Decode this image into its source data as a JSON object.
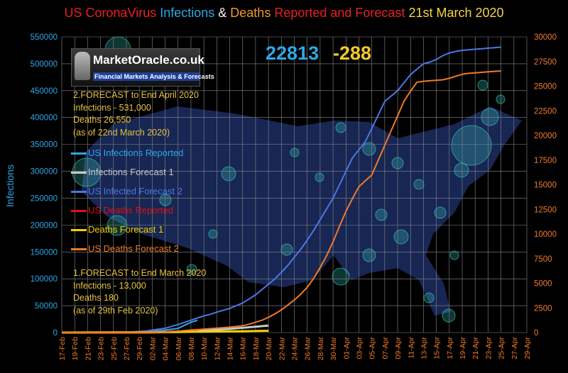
{
  "chart_data": {
    "type": "line",
    "title_parts": [
      {
        "text": "US CoronaVirus ",
        "color": "#e82020"
      },
      {
        "text": "Infections ",
        "color": "#2ca8e6"
      },
      {
        "text": "& ",
        "color": "#f0f0f0"
      },
      {
        "text": "Deaths ",
        "color": "#f29a2e"
      },
      {
        "text": "Reported and Forecast",
        "color": "#e82020"
      },
      {
        "text": "  21st  March 2020",
        "color": "#f2d44a"
      }
    ],
    "ylabel_left": "Infections",
    "ylim_left": [
      0,
      550000
    ],
    "ylim_right": [
      0,
      30000
    ],
    "left_ticks": [
      0,
      50000,
      100000,
      150000,
      200000,
      250000,
      300000,
      350000,
      400000,
      450000,
      500000,
      550000
    ],
    "right_ticks": [
      0,
      2500,
      5000,
      7500,
      10000,
      12500,
      15000,
      17500,
      20000,
      22500,
      25000,
      27500,
      30000
    ],
    "x_labels": [
      "17-Feb",
      "19-Feb",
      "21-Feb",
      "23-Feb",
      "25-Feb",
      "27-Feb",
      "29-Feb",
      "02-Mar",
      "04-Mar",
      "06-Mar",
      "08-Mar",
      "10-Mar",
      "12-Mar",
      "14-Mar",
      "16-Mar",
      "18-Mar",
      "20-Mar",
      "22-Mar",
      "24-Mar",
      "26-Mar",
      "28-Mar",
      "30-Mar",
      "01-Apr",
      "03-Apr",
      "05-Apr",
      "07-Apr",
      "09-Apr",
      "11-Apr",
      "13-Apr",
      "15-Apr",
      "17-Apr",
      "19-Apr",
      "21-Apr",
      "23-Apr",
      "25-Apr",
      "27-Apr",
      "29-Apr"
    ],
    "headline": {
      "infections": "22813",
      "deaths": "-288"
    },
    "forecast2_text": [
      "2.FORECAST to End April 2020",
      "Infections - 531,000",
      "Deaths 26,550",
      "(as of  22nd March  2020)"
    ],
    "forecast1_text": [
      "1.FORECAST to End March 2020",
      "Infections - 13,000",
      "Deaths 180",
      "(as of  29th Feb  2020)"
    ],
    "series": [
      {
        "name": "US Infections Reported",
        "axis": "left",
        "color": "#2ca8e6",
        "width": 2,
        "points": [
          [
            0,
            15
          ],
          [
            6,
            60
          ],
          [
            12,
            900
          ],
          [
            14,
            2500
          ],
          [
            16,
            4600
          ],
          [
            18,
            7800
          ],
          [
            19,
            13600
          ],
          [
            20,
            19100
          ],
          [
            21,
            22813
          ]
        ]
      },
      {
        "name": "Infections Forecast 1",
        "axis": "left",
        "color": "#c8c8c8",
        "width": 3,
        "points": [
          [
            0,
            0
          ],
          [
            6,
            70
          ],
          [
            12,
            450
          ],
          [
            14,
            700
          ],
          [
            16,
            1200
          ],
          [
            17,
            1600
          ],
          [
            18,
            2000
          ],
          [
            19,
            2500
          ],
          [
            20,
            3000
          ],
          [
            22,
            4300
          ],
          [
            24,
            5600
          ],
          [
            26,
            7000
          ],
          [
            28,
            8900
          ],
          [
            30,
            11000
          ],
          [
            31,
            12000
          ],
          [
            32,
            13000
          ]
        ]
      },
      {
        "name": "US Infected Forecast 2",
        "axis": "left",
        "color": "#4a78e8",
        "width": 2,
        "points": [
          [
            0,
            0
          ],
          [
            5,
            100
          ],
          [
            10,
            600
          ],
          [
            13,
            3000
          ],
          [
            16,
            8000
          ],
          [
            18,
            15000
          ],
          [
            19,
            19000
          ],
          [
            20,
            23000
          ],
          [
            21,
            27000
          ],
          [
            22,
            31000
          ],
          [
            23,
            34000
          ],
          [
            24,
            38000
          ],
          [
            26,
            45000
          ],
          [
            28,
            55000
          ],
          [
            30,
            70000
          ],
          [
            31,
            80000
          ],
          [
            32,
            90000
          ],
          [
            33,
            100000
          ],
          [
            34,
            112000
          ],
          [
            35,
            125000
          ],
          [
            36,
            140000
          ],
          [
            37,
            155000
          ],
          [
            38,
            172000
          ],
          [
            39,
            190000
          ],
          [
            40,
            210000
          ],
          [
            41,
            230000
          ],
          [
            42,
            250000
          ],
          [
            43,
            275000
          ],
          [
            44,
            300000
          ],
          [
            45,
            325000
          ],
          [
            46,
            340000
          ],
          [
            47,
            355000
          ],
          [
            48,
            380000
          ],
          [
            49,
            405000
          ],
          [
            50,
            430000
          ],
          [
            51,
            440000
          ],
          [
            52,
            450000
          ],
          [
            53,
            465000
          ],
          [
            54,
            480000
          ],
          [
            55,
            490000
          ],
          [
            56,
            500000
          ],
          [
            57,
            503000
          ],
          [
            58,
            508000
          ],
          [
            59,
            515000
          ],
          [
            60,
            520000
          ],
          [
            61,
            523000
          ],
          [
            62,
            525000
          ],
          [
            63,
            526000
          ],
          [
            64,
            527000
          ],
          [
            65,
            528000
          ],
          [
            66,
            529000
          ],
          [
            67,
            530000
          ],
          [
            68,
            531000
          ]
        ]
      },
      {
        "name": "US Deaths Reported",
        "axis": "right",
        "color": "#e01010",
        "width": 3,
        "points": [
          [
            0,
            0
          ],
          [
            14,
            30
          ],
          [
            18,
            100
          ],
          [
            20,
            220
          ],
          [
            21,
            288
          ]
        ]
      },
      {
        "name": "Deaths Forecast 1",
        "axis": "right",
        "color": "#f2d000",
        "width": 3,
        "points": [
          [
            0,
            0
          ],
          [
            12,
            15
          ],
          [
            14,
            25
          ],
          [
            16,
            40
          ],
          [
            18,
            60
          ],
          [
            20,
            80
          ],
          [
            22,
            95
          ],
          [
            24,
            110
          ],
          [
            26,
            125
          ],
          [
            28,
            140
          ],
          [
            30,
            160
          ],
          [
            32,
            180
          ]
        ]
      },
      {
        "name": "US Deaths Forecast 2",
        "axis": "right",
        "color": "#f07a28",
        "width": 2,
        "points": [
          [
            0,
            0
          ],
          [
            12,
            10
          ],
          [
            16,
            60
          ],
          [
            18,
            150
          ],
          [
            20,
            250
          ],
          [
            22,
            350
          ],
          [
            24,
            450
          ],
          [
            26,
            550
          ],
          [
            28,
            700
          ],
          [
            29,
            850
          ],
          [
            30,
            1050
          ],
          [
            31,
            1250
          ],
          [
            32,
            1550
          ],
          [
            33,
            1900
          ],
          [
            34,
            2300
          ],
          [
            35,
            2800
          ],
          [
            36,
            3300
          ],
          [
            37,
            3900
          ],
          [
            38,
            4600
          ],
          [
            39,
            5500
          ],
          [
            40,
            6600
          ],
          [
            41,
            7800
          ],
          [
            42,
            9200
          ],
          [
            43,
            10800
          ],
          [
            44,
            12300
          ],
          [
            45,
            13600
          ],
          [
            46,
            14800
          ],
          [
            47,
            15400
          ],
          [
            48,
            16000
          ],
          [
            49,
            17500
          ],
          [
            50,
            19000
          ],
          [
            51,
            20500
          ],
          [
            52,
            22000
          ],
          [
            53,
            23500
          ],
          [
            54,
            24500
          ],
          [
            55,
            25400
          ],
          [
            56,
            25500
          ],
          [
            57,
            25550
          ],
          [
            58,
            25600
          ],
          [
            59,
            25650
          ],
          [
            60,
            25800
          ],
          [
            61,
            26000
          ],
          [
            62,
            26200
          ],
          [
            63,
            26300
          ],
          [
            64,
            26350
          ],
          [
            65,
            26400
          ],
          [
            66,
            26450
          ],
          [
            67,
            26500
          ],
          [
            68,
            26550
          ]
        ]
      }
    ]
  },
  "logo": {
    "name": "MarketOracle.co.uk",
    "tagline": "Financial Markets Analysis & Forecasts"
  },
  "colors": {
    "grid": "#8a8a8a",
    "left_axis": "#2ca8e6",
    "right_axis": "#f07a28",
    "map": "#1b2a5c",
    "bubble": "#3ad6c6"
  }
}
